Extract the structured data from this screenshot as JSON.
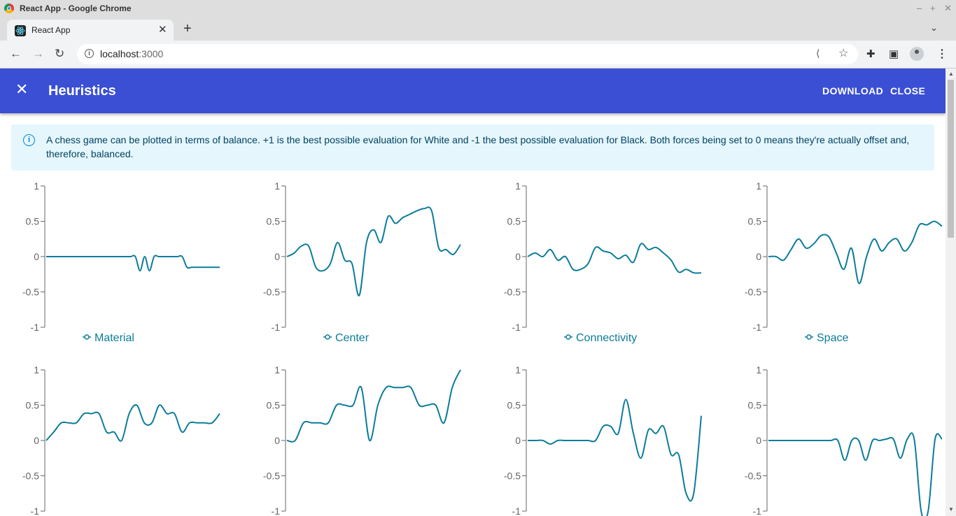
{
  "browser": {
    "window_title": "React App - Google Chrome",
    "tab_title": "React App",
    "url_host": "localhost",
    "url_port": ":3000"
  },
  "app": {
    "title": "Heuristics",
    "download_label": "DOWNLOAD",
    "close_label": "CLOSE",
    "info_text": "A chess game can be plotted in terms of balance. +1 is the best possible evaluation for White and -1 the best possible evaluation for Black. Both forces being set to 0 means they're actually offset and, therefore, balanced.",
    "accent_color": "#3a4fd4",
    "line_color": "#0c7c9a"
  },
  "chart_data": [
    {
      "type": "line",
      "name": "Material",
      "ylim": [
        -1,
        1
      ],
      "yticks": [
        "1",
        "0.5",
        "0",
        "-0.5",
        "-1"
      ],
      "values": [
        0,
        0,
        0,
        0,
        0,
        0,
        0,
        0,
        0,
        0,
        0,
        0,
        0,
        0,
        0,
        0,
        0,
        0,
        0,
        0,
        -0.2,
        0,
        -0.2,
        0,
        0,
        0,
        0,
        0,
        0,
        0,
        -0.15,
        -0.15,
        -0.15,
        -0.15,
        -0.15,
        -0.15,
        -0.15,
        -0.15
      ]
    },
    {
      "type": "line",
      "name": "Center",
      "ylim": [
        -1,
        1
      ],
      "yticks": [
        "1",
        "0.5",
        "0",
        "-0.5",
        "-1"
      ],
      "values": [
        0,
        0.05,
        0.15,
        0.15,
        -0.15,
        -0.2,
        -0.1,
        0.2,
        -0.05,
        -0.1,
        -0.55,
        0.2,
        0.38,
        0.2,
        0.57,
        0.47,
        0.55,
        0.6,
        0.65,
        0.68,
        0.65,
        0.12,
        0.1,
        0.03,
        0.17
      ]
    },
    {
      "type": "line",
      "name": "Connectivity",
      "ylim": [
        -1,
        1
      ],
      "yticks": [
        "1",
        "0.5",
        "0",
        "-0.5",
        "-1"
      ],
      "values": [
        0,
        0.05,
        0,
        0.1,
        -0.05,
        0,
        -0.18,
        -0.18,
        -0.1,
        0.13,
        0.08,
        0.05,
        -0.03,
        0.02,
        -0.08,
        0.18,
        0.1,
        0.13,
        0.05,
        -0.05,
        -0.22,
        -0.18,
        -0.23,
        -0.23
      ]
    },
    {
      "type": "line",
      "name": "Space",
      "ylim": [
        -1,
        1
      ],
      "yticks": [
        "1",
        "0.5",
        "0",
        "-0.5",
        "-1"
      ],
      "values": [
        0,
        0,
        -0.05,
        0.1,
        0.25,
        0.12,
        0.18,
        0.3,
        0.28,
        0.05,
        -0.18,
        0.12,
        -0.38,
        0,
        0.25,
        0.08,
        0.2,
        0.25,
        0.08,
        0.2,
        0.45,
        0.45,
        0.5,
        0.43
      ]
    },
    {
      "type": "line",
      "name": "",
      "ylim": [
        -1,
        1
      ],
      "yticks": [
        "1",
        "0.5",
        "0",
        "-0.5",
        "-1"
      ],
      "values": [
        0,
        0.12,
        0.25,
        0.25,
        0.25,
        0.38,
        0.38,
        0.38,
        0.12,
        0.12,
        0,
        0.38,
        0.5,
        0.25,
        0.25,
        0.5,
        0.38,
        0.38,
        0.12,
        0.25,
        0.25,
        0.25,
        0.25,
        0.38
      ]
    },
    {
      "type": "line",
      "name": "",
      "ylim": [
        -1,
        1
      ],
      "yticks": [
        "1",
        "0.5",
        "0",
        "-0.5",
        "-1"
      ],
      "values": [
        0,
        0,
        0.25,
        0.25,
        0.25,
        0.25,
        0.5,
        0.5,
        0.5,
        0.75,
        0,
        0.5,
        0.75,
        0.75,
        0.75,
        0.75,
        0.5,
        0.5,
        0.5,
        0.25,
        0.75,
        1
      ]
    },
    {
      "type": "line",
      "name": "",
      "ylim": [
        -1,
        1
      ],
      "yticks": [
        "1",
        "0.5",
        "0",
        "-0.5",
        "-1"
      ],
      "values": [
        0,
        0,
        0,
        -0.05,
        0,
        0,
        0,
        0,
        0,
        0,
        0.2,
        0.2,
        0.1,
        0.58,
        0.1,
        -0.25,
        0.15,
        0.1,
        0.2,
        -0.2,
        -0.2,
        -0.75,
        -0.75,
        0.35
      ]
    },
    {
      "type": "line",
      "name": "",
      "ylim": [
        -1,
        1
      ],
      "yticks": [
        "1",
        "0.5",
        "0",
        "-0.5",
        "-1"
      ],
      "values": [
        0,
        0,
        0,
        0,
        0,
        0,
        0,
        0,
        0,
        0,
        0,
        -0.28,
        0,
        0,
        -0.28,
        0,
        0,
        0.02,
        0.02,
        -0.25,
        0.02,
        0.02,
        -1,
        -1,
        0.02,
        0.02
      ]
    }
  ]
}
